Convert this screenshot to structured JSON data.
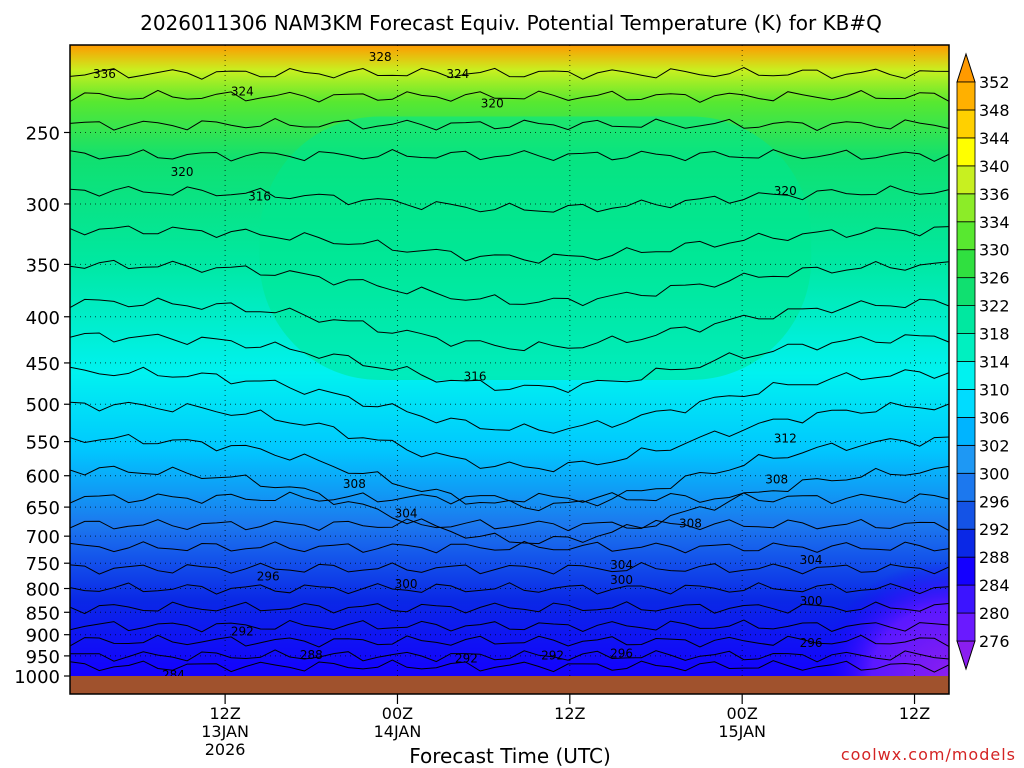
{
  "chart_data": {
    "type": "heatmap",
    "title": "2026011306 NAM3KM Forecast Equiv. Potential Temperature (K) for KB#Q",
    "xlabel": "Forecast Time (UTC)",
    "ylabel": "",
    "x_range_hours": [
      -3,
      48
    ],
    "y_range_hPa": [
      1000,
      200
    ],
    "x_ticks": [
      {
        "hour": 6,
        "label": "12Z",
        "sub1": "13JAN",
        "sub2": "2026"
      },
      {
        "hour": 16,
        "label": "00Z",
        "sub1": "14JAN",
        "sub2": ""
      },
      {
        "hour": 26,
        "label": "12Z",
        "sub1": "",
        "sub2": ""
      },
      {
        "hour": 36,
        "label": "00Z",
        "sub1": "15JAN",
        "sub2": ""
      },
      {
        "hour": 46,
        "label": "12Z",
        "sub1": "",
        "sub2": ""
      }
    ],
    "y_ticks": [
      250,
      300,
      350,
      400,
      450,
      500,
      550,
      600,
      650,
      700,
      750,
      800,
      850,
      900,
      950,
      1000
    ],
    "colorbar": {
      "levels": [
        276,
        280,
        284,
        288,
        292,
        296,
        300,
        302,
        306,
        310,
        314,
        318,
        322,
        326,
        330,
        334,
        336,
        340,
        344,
        348,
        352
      ],
      "colors": [
        "#8a1ef0",
        "#6a1aff",
        "#3c14ff",
        "#1400ff",
        "#0a28e6",
        "#1453e6",
        "#1c78ee",
        "#1e98f4",
        "#00b4ff",
        "#00dcff",
        "#00f2f0",
        "#00f0c0",
        "#00e8a0",
        "#10e070",
        "#30e040",
        "#58e830",
        "#8cec28",
        "#c8f020",
        "#ffff00",
        "#ffd000",
        "#ffb000",
        "#ff9a00"
      ]
    },
    "contour_labels": [
      {
        "text": "336",
        "t": -1,
        "p": 215
      },
      {
        "text": "328",
        "t": 15,
        "p": 206
      },
      {
        "text": "324",
        "t": 7,
        "p": 225
      },
      {
        "text": "324",
        "t": 19.5,
        "p": 215
      },
      {
        "text": "320",
        "t": 21.5,
        "p": 232
      },
      {
        "text": "320",
        "t": 3.5,
        "p": 276
      },
      {
        "text": "320",
        "t": 38.5,
        "p": 290
      },
      {
        "text": "316",
        "t": 8,
        "p": 294
      },
      {
        "text": "316",
        "t": 20.5,
        "p": 465
      },
      {
        "text": "312",
        "t": 38.5,
        "p": 545
      },
      {
        "text": "308",
        "t": 13.5,
        "p": 612
      },
      {
        "text": "308",
        "t": 33,
        "p": 677
      },
      {
        "text": "308",
        "t": 38,
        "p": 605
      },
      {
        "text": "304",
        "t": 16.5,
        "p": 660
      },
      {
        "text": "304",
        "t": 29,
        "p": 752
      },
      {
        "text": "304",
        "t": 40,
        "p": 743
      },
      {
        "text": "300",
        "t": 16.5,
        "p": 790
      },
      {
        "text": "300",
        "t": 29,
        "p": 782
      },
      {
        "text": "300",
        "t": 40,
        "p": 825
      },
      {
        "text": "296",
        "t": 8.5,
        "p": 775
      },
      {
        "text": "296",
        "t": 29,
        "p": 943
      },
      {
        "text": "296",
        "t": 40,
        "p": 918
      },
      {
        "text": "292",
        "t": 7,
        "p": 892
      },
      {
        "text": "292",
        "t": 20,
        "p": 955
      },
      {
        "text": "292",
        "t": 25,
        "p": 948
      },
      {
        "text": "288",
        "t": 11,
        "p": 947
      },
      {
        "text": "284",
        "t": 3,
        "p": 996
      }
    ]
  },
  "watermark": "coolwx.com/models"
}
